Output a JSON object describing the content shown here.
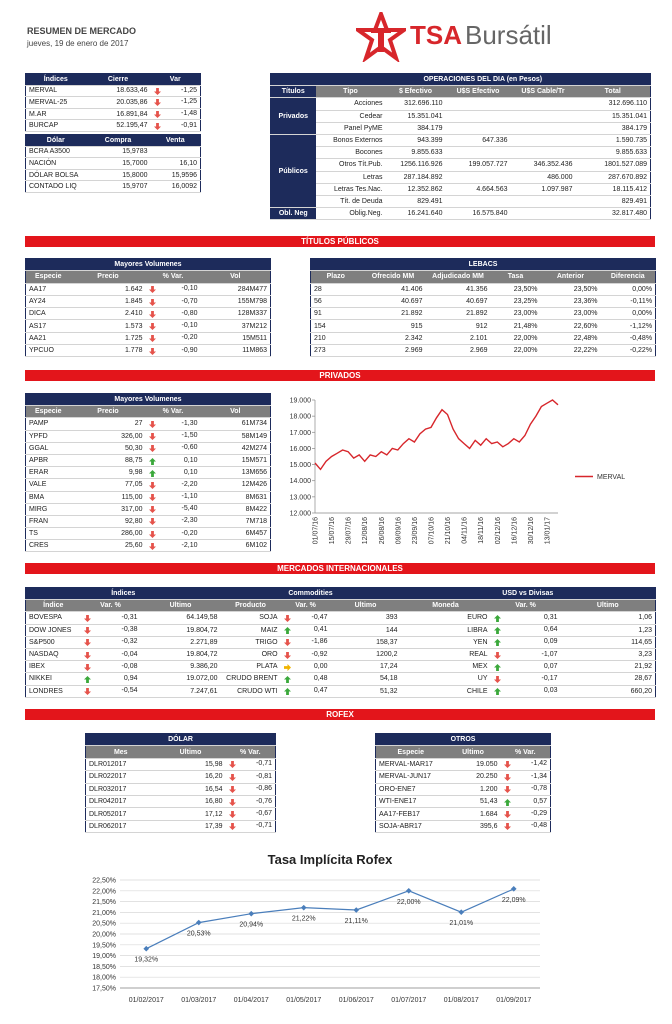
{
  "header": {
    "title": "RESUMEN DE MERCADO",
    "date": "jueves, 19 de enero de 2017",
    "logo_a": "TSA",
    "logo_b": "Bursátil"
  },
  "indices": {
    "columns": [
      "Índices",
      "Cierre",
      "Var"
    ],
    "rows": [
      [
        "MERVAL",
        "18.633,46",
        "-1,25"
      ],
      [
        "MERVAL-25",
        "20.035,86",
        "-1,25"
      ],
      [
        "M.AR",
        "16.891,84",
        "-1,48"
      ],
      [
        "BURCAP",
        "52.195,47",
        "-0,91"
      ]
    ]
  },
  "dolar": {
    "columns": [
      "Dólar",
      "Compra",
      "Venta"
    ],
    "rows": [
      [
        "BCRA A3500",
        "15,9783",
        null
      ],
      [
        "NACIÓN",
        "15,7000",
        "16,10"
      ],
      [
        "DÓLAR BOLSA",
        "15,8000",
        "15,9596"
      ],
      [
        "CONTADO LIQ",
        "15,9707",
        "16,0092"
      ]
    ]
  },
  "operaciones": {
    "title": "OPERACIONES DEL DIA (en Pesos)",
    "columns": [
      "Títulos",
      "Tipo",
      "$ Efectivo",
      "U$S Efectivo",
      "U$S Cable/Tr",
      "Total"
    ],
    "groups": [
      {
        "name": "Privados",
        "rows": [
          [
            "Acciones",
            "312.696.110",
            null,
            null,
            "312.696.110"
          ],
          [
            "Cedear",
            "15.351.041",
            null,
            null,
            "15.351.041"
          ],
          [
            "Panel PyME",
            "384.179",
            null,
            null,
            "384.179"
          ]
        ]
      },
      {
        "name": "Públicos",
        "rows": [
          [
            "Bonos Externos",
            "943.399",
            "647.336",
            null,
            "1.590.735"
          ],
          [
            "Bocones",
            "9.855.633",
            null,
            null,
            "9.855.633"
          ],
          [
            "Otros Tít.Pub.",
            "1256.116.926",
            "199.057.727",
            "346.352.436",
            "1801.527.089"
          ],
          [
            "Letras",
            "287.184.892",
            null,
            "486.000",
            "287.670.892"
          ],
          [
            "Letras Tes.Nac.",
            "12.352.862",
            "4.664.563",
            "1.097.987",
            "18.115.412"
          ],
          [
            "Tít. de Deuda",
            "829.491",
            null,
            null,
            "829.491"
          ]
        ]
      },
      {
        "name": "Obl. Neg",
        "rows": [
          [
            "Oblig.Neg.",
            "16.241.640",
            "16.575.840",
            null,
            "32.817.480"
          ]
        ]
      }
    ]
  },
  "banners": [
    "TÍTULOS PÚBLICOS",
    "PRIVADOS",
    "MERCADOS INTERNACIONALES",
    "ROFEX"
  ],
  "titulos_volumenes": {
    "title": "Mayores Volumenes",
    "columns": [
      "Especie",
      "Precio",
      "% Var.",
      "Vol"
    ],
    "rows": [
      [
        "AA17",
        "1.642",
        "-0,10",
        "284M477"
      ],
      [
        "AY24",
        "1.845",
        "-0,70",
        "155M798"
      ],
      [
        "DICA",
        "2.410",
        "-0,80",
        "128M337"
      ],
      [
        "AS17",
        "1.573",
        "-0,10",
        "37M212"
      ],
      [
        "AA21",
        "1.725",
        "-0,20",
        "15M511"
      ],
      [
        "YPCUO",
        "1.778",
        "-0,90",
        "11M863"
      ]
    ]
  },
  "lebacs": {
    "title": "LEBACS",
    "columns": [
      "Plazo",
      "Ofrecido MM",
      "Adjudicado MM",
      "Tasa",
      "Anterior",
      "Diferencia"
    ],
    "rows": [
      [
        "28",
        "41.406",
        "41.356",
        "23,50%",
        "23,50%",
        "0,00%"
      ],
      [
        "56",
        "40.697",
        "40.697",
        "23,25%",
        "23,36%",
        "-0,11%"
      ],
      [
        "91",
        "21.892",
        "21.892",
        "23,00%",
        "23,00%",
        "0,00%"
      ],
      [
        "154",
        "915",
        "912",
        "21,48%",
        "22,60%",
        "-1,12%"
      ],
      [
        "210",
        "2.342",
        "2.101",
        "22,00%",
        "22,48%",
        "-0,48%"
      ],
      [
        "273",
        "2.969",
        "2.969",
        "22,00%",
        "22,22%",
        "-0,22%"
      ]
    ]
  },
  "privados_volumenes": {
    "title": "Mayores Volumenes",
    "columns": [
      "Especie",
      "Precio",
      "% Var.",
      "Vol"
    ],
    "rows": [
      [
        "PAMP",
        "27",
        "-1,30",
        "61M734"
      ],
      [
        "YPFD",
        "326,00",
        "-1,50",
        "58M149"
      ],
      [
        "GGAL",
        "50,30",
        "-0,60",
        "42M274"
      ],
      [
        "APBR",
        "88,75",
        "0,10",
        "15M571"
      ],
      [
        "ERAR",
        "9,98",
        "0,10",
        "13M656"
      ],
      [
        "VALE",
        "77,05",
        "-2,20",
        "12M426"
      ],
      [
        "BMA",
        "115,00",
        "-1,10",
        "8M631"
      ],
      [
        "MIRG",
        "317,00",
        "-5,40",
        "8M422"
      ],
      [
        "FRAN",
        "92,80",
        "-2,30",
        "7M718"
      ],
      [
        "TS",
        "286,00",
        "-0,20",
        "6M457"
      ],
      [
        "CRES",
        "25,60",
        "-2,10",
        "6M102"
      ]
    ]
  },
  "merval_chart": {
    "type": "line",
    "categories": [
      "01/07/16",
      null,
      null,
      "15/07/16",
      null,
      null,
      "29/07/16",
      null,
      null,
      "12/08/16",
      null,
      null,
      "26/08/16",
      null,
      null,
      "09/09/16",
      null,
      null,
      "23/09/16",
      null,
      null,
      "07/10/16",
      null,
      null,
      "21/10/16",
      null,
      null,
      "04/11/16",
      null,
      null,
      "18/11/16",
      null,
      null,
      "02/12/16",
      null,
      null,
      "16/12/16",
      null,
      null,
      "30/12/16",
      null,
      null,
      "13/01/17",
      null,
      null
    ],
    "series": [
      {
        "name": "MERVAL",
        "color": "#d7262b",
        "values": [
          15100,
          14700,
          15200,
          15500,
          15700,
          15900,
          15800,
          15400,
          15600,
          15200,
          15600,
          15500,
          15800,
          15600,
          16000,
          15900,
          16300,
          16600,
          16400,
          16900,
          17200,
          17300,
          17900,
          18400,
          18100,
          17200,
          16600,
          16300,
          16000,
          16500,
          16200,
          16600,
          16300,
          16400,
          16100,
          16300,
          16600,
          16400,
          16800,
          17500,
          18000,
          18600,
          18800,
          19000,
          18700
        ]
      }
    ],
    "ylim": [
      12000,
      19000
    ],
    "yticks": [
      {
        "value": 12000,
        "label": "12.000"
      },
      {
        "value": 13000,
        "label": "13.000"
      },
      {
        "value": 14000,
        "label": "14.000"
      },
      {
        "value": 15000,
        "label": "15.000"
      },
      {
        "value": 16000,
        "label": "16.000"
      },
      {
        "value": 17000,
        "label": "17.000"
      },
      {
        "value": 18000,
        "label": "18.000"
      },
      {
        "value": 19000,
        "label": "19.000"
      }
    ],
    "grid": false,
    "legend": "right"
  },
  "internacionales": {
    "groups": [
      "Índices",
      "Commodities",
      "USD vs Divisas"
    ],
    "columns": [
      "Índice",
      "Var. %",
      "Ultimo",
      "Producto",
      "Var. %",
      "Ultimo",
      "Moneda",
      "Var. %",
      "Ultimo"
    ],
    "rows": [
      [
        "BOVESPA",
        "-0,31",
        "64.149,58",
        "SOJA",
        "-0,47",
        "393",
        "EURO",
        "0,31",
        "1,06"
      ],
      [
        "DOW JONES",
        "-0,38",
        "19.804,72",
        "MAIZ",
        "0,41",
        "144",
        "LIBRA",
        "0,64",
        "1,23"
      ],
      [
        "S&P500",
        "-0,32",
        "2.271,89",
        "TRIGO",
        "-1,86",
        "158,37",
        "YEN",
        "0,09",
        "114,65"
      ],
      [
        "NASDAQ",
        "-0,04",
        "19.804,72",
        "ORO",
        "-0,92",
        "1200,2",
        "REAL",
        "-1,07",
        "3,23"
      ],
      [
        "IBEX",
        "-0,08",
        "9.386,20",
        "PLATA",
        "0,00",
        "17,24",
        "MEX",
        "0,07",
        "21,92"
      ],
      [
        "NIKKEI",
        "0,94",
        "19.072,00",
        "CRUDO BRENT",
        "0,48",
        "54,18",
        "UY",
        "-0,17",
        "28,67"
      ],
      [
        "LONDRES",
        "-0,54",
        "7.247,61",
        "CRUDO WTI",
        "0,47",
        "51,32",
        "CHILE",
        "0,03",
        "660,20"
      ]
    ]
  },
  "rofex_dolar": {
    "title": "DÓLAR",
    "columns": [
      "Mes",
      "Ultimo",
      "% Var."
    ],
    "rows": [
      [
        "DLR012017",
        "15,98",
        "-0,71"
      ],
      [
        "DLR022017",
        "16,20",
        "-0,81"
      ],
      [
        "DLR032017",
        "16,54",
        "-0,86"
      ],
      [
        "DLR042017",
        "16,80",
        "-0,76"
      ],
      [
        "DLR052017",
        "17,12",
        "-0,67"
      ],
      [
        "DLR062017",
        "17,39",
        "-0,71"
      ]
    ]
  },
  "rofex_otros": {
    "title": "OTROS",
    "columns": [
      "Especie",
      "Ultimo",
      "% Var."
    ],
    "rows": [
      [
        "MERVAL-MAR17",
        "19.050",
        "-1,42"
      ],
      [
        "MERVAL-JUN17",
        "20.250",
        "-1,34"
      ],
      [
        "ORO-ENE7",
        "1.200",
        "-0,78"
      ],
      [
        "WTI-ENE17",
        "51,43",
        "0,57"
      ],
      [
        "AA17-FEB17",
        "1.684",
        "-0,29"
      ],
      [
        "SOJA-ABR17",
        "395,6",
        "-0,48"
      ]
    ]
  },
  "tasa_chart": {
    "type": "line",
    "title": "Tasa Implícita Rofex",
    "categories": [
      "01/02/2017",
      "01/03/2017",
      "01/04/2017",
      "01/05/2017",
      "01/06/2017",
      "01/07/2017",
      "01/08/2017",
      "01/09/2017"
    ],
    "values": [
      19.32,
      20.53,
      20.94,
      21.22,
      21.11,
      22.0,
      21.01,
      22.09
    ],
    "value_labels": [
      "19,32%",
      "20,53%",
      "20,94%",
      "21,22%",
      "21,11%",
      "22,00%",
      "21,01%",
      "22,09%"
    ],
    "color": "#4a7ebb",
    "markers": true,
    "ylim": [
      17.5,
      22.5
    ],
    "yticks": [
      {
        "value": 17.5,
        "label": "17,50%"
      },
      {
        "value": 18,
        "label": "18,00%"
      },
      {
        "value": 18.5,
        "label": "18,50%"
      },
      {
        "value": 19,
        "label": "19,00%"
      },
      {
        "value": 19.5,
        "label": "19,50%"
      },
      {
        "value": 20,
        "label": "20,00%"
      },
      {
        "value": 20.5,
        "label": "20,50%"
      },
      {
        "value": 21,
        "label": "21,00%"
      },
      {
        "value": 21.5,
        "label": "21,50%"
      },
      {
        "value": 22,
        "label": "22,00%"
      },
      {
        "value": 22.5,
        "label": "22,50%"
      }
    ],
    "grid": true
  }
}
